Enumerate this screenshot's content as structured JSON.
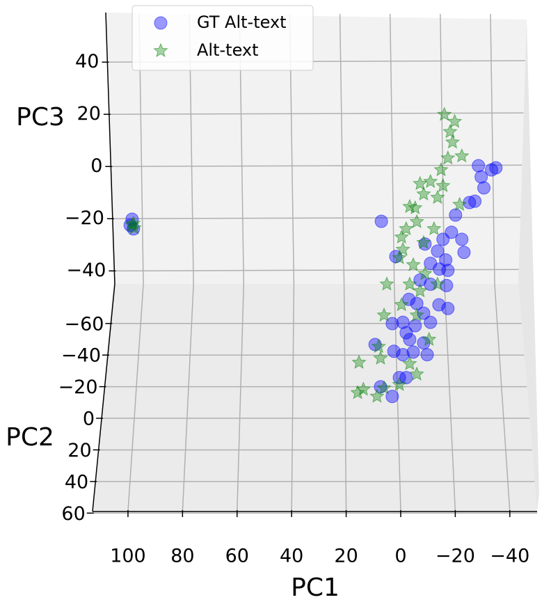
{
  "chart_data": {
    "type": "scatter3d",
    "xlabel": "PC1",
    "ylabel": "PC2",
    "zlabel": "PC3",
    "xlim": [
      113,
      -50
    ],
    "ylim": [
      -85,
      59
    ],
    "zlim": [
      -45,
      59
    ],
    "xticks": [
      100,
      80,
      60,
      40,
      20,
      0,
      {
        "value": -20,
        "label": "−20"
      },
      {
        "value": -40,
        "label": "−40"
      }
    ],
    "yticks": [
      {
        "value": -60,
        "label": "−60"
      },
      {
        "value": -40,
        "label": "−40"
      },
      {
        "value": -20,
        "label": "−20"
      },
      0,
      20,
      40,
      60
    ],
    "zticks": [
      40,
      20,
      0,
      {
        "value": -20,
        "label": "−20"
      },
      {
        "value": -40,
        "label": "−40"
      }
    ],
    "grid": true,
    "legend": "upper left",
    "series": [
      {
        "name": "GT Alt-text",
        "color": "#0000ff",
        "marker": "circle",
        "x": [
          98.5,
          99.2,
          98,
          7.1,
          -28.5,
          -33.3,
          -34.9,
          -30.5,
          -29.5,
          -25.2,
          -27.2,
          -20.1,
          -18.6,
          -22.4,
          -23.2,
          -15.5,
          -13.5,
          -8.9,
          -16.5,
          -14.2,
          -17.3,
          -10.9,
          -7.1,
          -10.9,
          -16.8,
          -5.9,
          -3,
          -14,
          -17.3,
          -8.4,
          -10.9,
          -5.3,
          -0.8,
          3.1,
          -3.3,
          -8.4,
          -2,
          -9.7,
          -4.6,
          -0.8,
          2.5,
          9.4,
          -2,
          0.5,
          7.4,
          3.1,
          1.8
        ],
        "z": [
          -20.2,
          -22.5,
          -23.9,
          -21,
          0.3,
          -1.3,
          -0.5,
          -8.2,
          -4,
          -13.8,
          -13.3,
          -18.6,
          -25.2,
          -27.9,
          -32.9,
          -27.9,
          -32.4,
          -29.7,
          -35.8,
          -39.3,
          -39.8,
          -37.1,
          -43.5,
          -45.1,
          -45.6,
          -52.5,
          -50.9,
          -53,
          -54.4,
          -56.2,
          -59.7,
          -61,
          -59.7,
          -60.2,
          -66.3,
          -67.6,
          -63.7,
          -72.1,
          -71.1,
          -72.1,
          -70.8,
          -68.2,
          -80.9,
          -80.9,
          -84.4,
          -88.1,
          -34.5
        ]
      },
      {
        "name": "Alt-text",
        "color": "#008000",
        "marker": "star",
        "x": [
          98,
          98.5,
          97.7,
          -16,
          -19.8,
          -18.1,
          -19,
          -22.4,
          -17.3,
          -14.8,
          -10.9,
          -7.1,
          -15.5,
          -13.5,
          -8.4,
          -5.3,
          -3.3,
          -5.9,
          -2,
          -0.3,
          -8.4,
          -0.8,
          0.5,
          -4.6,
          -8.9,
          5.1,
          -13.5,
          -3.3,
          -0.3,
          -5.9,
          6.1,
          8.1,
          7.4,
          15.3,
          -3.3,
          -5.9,
          0.5,
          6.1,
          13.7,
          15.8,
          8.7,
          -21.6,
          -12.2,
          -7.1,
          -10.4
        ],
        "z": [
          -21.8,
          -22.5,
          -23.6,
          19.9,
          17.2,
          13.3,
          9.3,
          4,
          3.2,
          -1.3,
          -5.8,
          -6.6,
          -7.4,
          -11.9,
          -10.6,
          -15.9,
          -15.4,
          -21.2,
          -23.9,
          -27.1,
          -29.2,
          -31.8,
          -35,
          -37.7,
          -41.1,
          -45.1,
          -45.1,
          -45.1,
          -53,
          -57,
          -57,
          -69,
          -73.5,
          -75.1,
          -75.6,
          -79.6,
          -83.6,
          -84.9,
          -85.4,
          -86.7,
          -88.1,
          -14.6,
          -23.9,
          -47.7,
          -66.3
        ]
      }
    ]
  }
}
